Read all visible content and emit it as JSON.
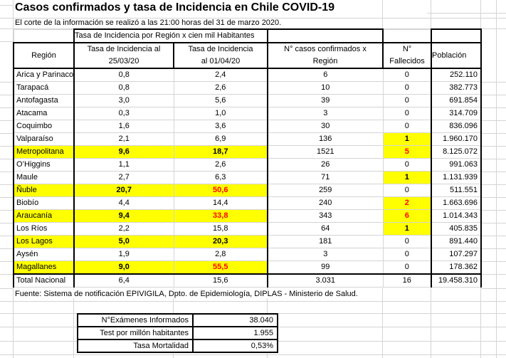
{
  "title": "Casos confirmados y tasa de Incidencia en Chile COVID-19",
  "subtitle": "El corte de la información se realizó a las 21:00 horas del 31 de marzo 2020.",
  "table": {
    "group_header": "Tasa de Incidencia por Región x cien mil Habitantes",
    "header": {
      "region": "Región",
      "tasa1": [
        "Tasa de Incidencia al",
        "25/03/20"
      ],
      "tasa2": [
        "Tasa de Incidencia",
        "al 01/04/20"
      ],
      "casos": [
        "N° casos confirmados x",
        "Región"
      ],
      "fallecidos": [
        "N°",
        "Fallecidos"
      ],
      "poblacion": "Población"
    },
    "rows": [
      {
        "region": "Arica y Parinacota",
        "tasa1": "0,8",
        "tasa2": "2,4",
        "casos": "6",
        "fallecidos": "0",
        "poblacion": "252.110"
      },
      {
        "region": "Tarapacá",
        "tasa1": "0,8",
        "tasa2": "2,6",
        "casos": "10",
        "fallecidos": "0",
        "poblacion": "382.773"
      },
      {
        "region": "Antofagasta",
        "tasa1": "3,0",
        "tasa2": "5,6",
        "casos": "39",
        "fallecidos": "0",
        "poblacion": "691.854"
      },
      {
        "region": "Atacama",
        "tasa1": "0,3",
        "tasa2": "1,0",
        "casos": "3",
        "fallecidos": "0",
        "poblacion": "314.709"
      },
      {
        "region": "Coquimbo",
        "tasa1": "1,6",
        "tasa2": "3,6",
        "casos": "30",
        "fallecidos": "0",
        "poblacion": "836.096"
      },
      {
        "region": "Valparaíso",
        "tasa1": "2,1",
        "tasa2": "6,9",
        "casos": "136",
        "fallecidos": "1",
        "poblacion": "1.960.170",
        "fhl": true
      },
      {
        "region": "Metropolitana",
        "tasa1": "9,6",
        "tasa2": "18,7",
        "casos": "1521",
        "fallecidos": "5",
        "poblacion": "8.125.072",
        "hl": true,
        "fhl": true,
        "fred": true
      },
      {
        "region": "O’Higgins",
        "tasa1": "1,1",
        "tasa2": "2,6",
        "casos": "26",
        "fallecidos": "0",
        "poblacion": "991.063"
      },
      {
        "region": "Maule",
        "tasa1": "2,7",
        "tasa2": "6,3",
        "casos": "71",
        "fallecidos": "1",
        "poblacion": "1.131.939",
        "fhl": true
      },
      {
        "region": "Ñuble",
        "tasa1": "20,7",
        "tasa2": "50,6",
        "casos": "259",
        "fallecidos": "0",
        "poblacion": "511.551",
        "hl": true,
        "t2red": true
      },
      {
        "region": "Biobío",
        "tasa1": "4,4",
        "tasa2": "14,4",
        "casos": "240",
        "fallecidos": "2",
        "poblacion": "1.663.696",
        "fhl": true,
        "fred": true
      },
      {
        "region": "Araucanía",
        "tasa1": "9,4",
        "tasa2": "33,8",
        "casos": "343",
        "fallecidos": "6",
        "poblacion": "1.014.343",
        "hl": true,
        "t2red": true,
        "fhl": true,
        "fred": true
      },
      {
        "region": "Los Ríos",
        "tasa1": "2,2",
        "tasa2": "15,8",
        "casos": "64",
        "fallecidos": "1",
        "poblacion": "405.835",
        "fhl": true
      },
      {
        "region": "Los Lagos",
        "tasa1": "5,0",
        "tasa2": "20,3",
        "casos": "181",
        "fallecidos": "0",
        "poblacion": "891.440",
        "hl": true
      },
      {
        "region": "Aysén",
        "tasa1": "1,9",
        "tasa2": "2,8",
        "casos": "3",
        "fallecidos": "0",
        "poblacion": "107.297"
      },
      {
        "region": "Magallanes",
        "tasa1": "9,0",
        "tasa2": "55,5",
        "casos": "99",
        "fallecidos": "0",
        "poblacion": "178.362",
        "hl": true,
        "t2red": true
      }
    ],
    "total": {
      "region": "Total Nacional",
      "tasa1": "6,4",
      "tasa2": "15,6",
      "casos": "3.031",
      "fallecidos": "16",
      "poblacion": "19.458.310"
    }
  },
  "source": "Fuente: Sistema de notificación EPIVIGILA, Dpto. de Epidemiología, DIPLAS - Ministerio de Salud.",
  "summary": {
    "rows": [
      {
        "label": "N°Exámenes Informados",
        "value": "38.040"
      },
      {
        "label": "Test por millón habitantes",
        "value": "1.955"
      },
      {
        "label": "Tasa Mortalidad",
        "value": "0,53%"
      }
    ]
  },
  "colors": {
    "highlight": "#ffff00",
    "alert_text": "#ff0000",
    "border": "#000000",
    "gridline": "#d4d4d4"
  }
}
